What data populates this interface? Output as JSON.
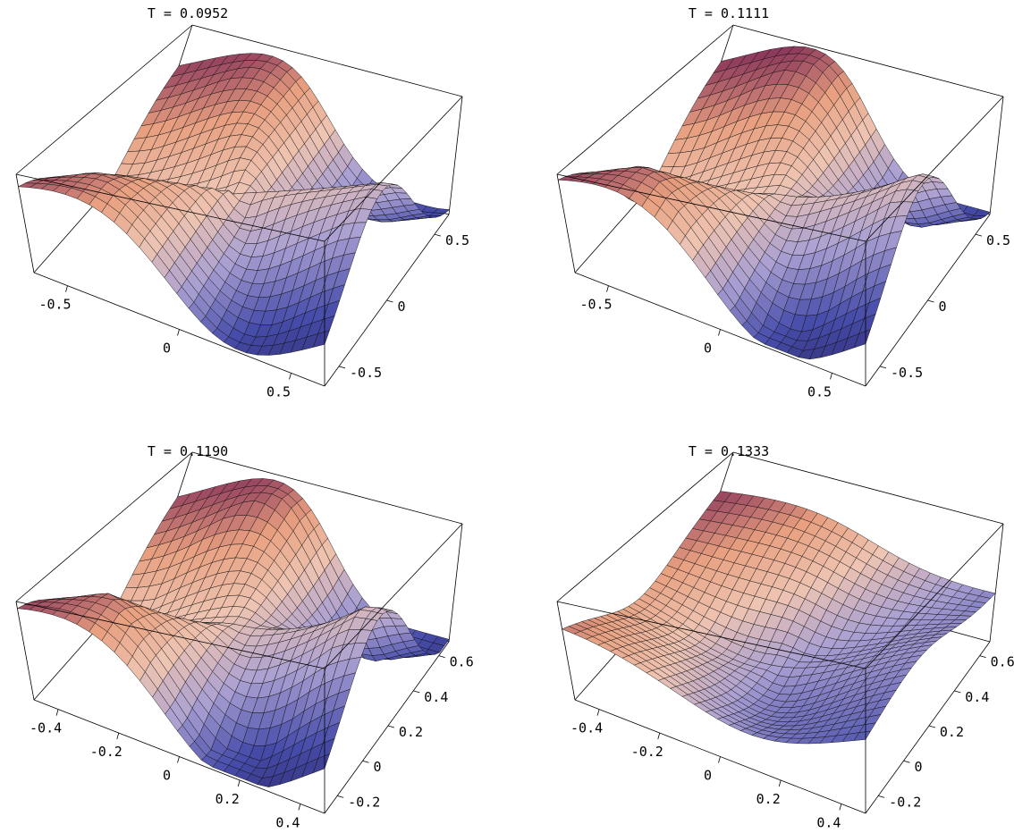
{
  "chart_data": [
    {
      "type": "surface",
      "title": "T = 0.0952",
      "x_ticks": [
        "-0.5",
        "0",
        "0.5"
      ],
      "x_tick_values": [
        -0.5,
        0,
        0.5
      ],
      "y_ticks": [
        "-0.5",
        "0",
        "0.5"
      ],
      "y_tick_values": [
        -0.5,
        0,
        0.5
      ],
      "xlim": [
        -0.65,
        0.65
      ],
      "ylim": [
        -0.65,
        0.65
      ],
      "grid": false
    },
    {
      "type": "surface",
      "title": "T = 0.1111",
      "x_ticks": [
        "-0.5",
        "0",
        "0.5"
      ],
      "x_tick_values": [
        -0.5,
        0,
        0.5
      ],
      "y_ticks": [
        "-0.5",
        "0",
        "0.5"
      ],
      "y_tick_values": [
        -0.5,
        0,
        0.5
      ],
      "xlim": [
        -0.65,
        0.65
      ],
      "ylim": [
        -0.65,
        0.65
      ],
      "grid": false
    },
    {
      "type": "surface",
      "title": "T = 0.1190",
      "x_ticks": [
        "-0.4",
        "-0.2",
        "0",
        "0.2",
        "0.4"
      ],
      "x_tick_values": [
        -0.4,
        -0.2,
        0,
        0.2,
        0.4
      ],
      "y_ticks": [
        "-0.2",
        "0",
        "0.2",
        "0.4",
        "0.6"
      ],
      "y_tick_values": [
        -0.2,
        0,
        0.2,
        0.4,
        0.6
      ],
      "xlim": [
        -0.48,
        0.48
      ],
      "ylim": [
        -0.3,
        0.68
      ],
      "grid": false
    },
    {
      "type": "surface",
      "title": "T = 0.1333",
      "x_ticks": [
        "-0.4",
        "-0.2",
        "0",
        "0.2",
        "0.4"
      ],
      "x_tick_values": [
        -0.4,
        -0.2,
        0,
        0.2,
        0.4
      ],
      "y_ticks": [
        "-0.2",
        "0",
        "0.2",
        "0.4",
        "0.6"
      ],
      "y_tick_values": [
        -0.2,
        0,
        0.2,
        0.4,
        0.6
      ],
      "xlim": [
        -0.48,
        0.48
      ],
      "ylim": [
        -0.3,
        0.68
      ],
      "grid": false
    }
  ]
}
